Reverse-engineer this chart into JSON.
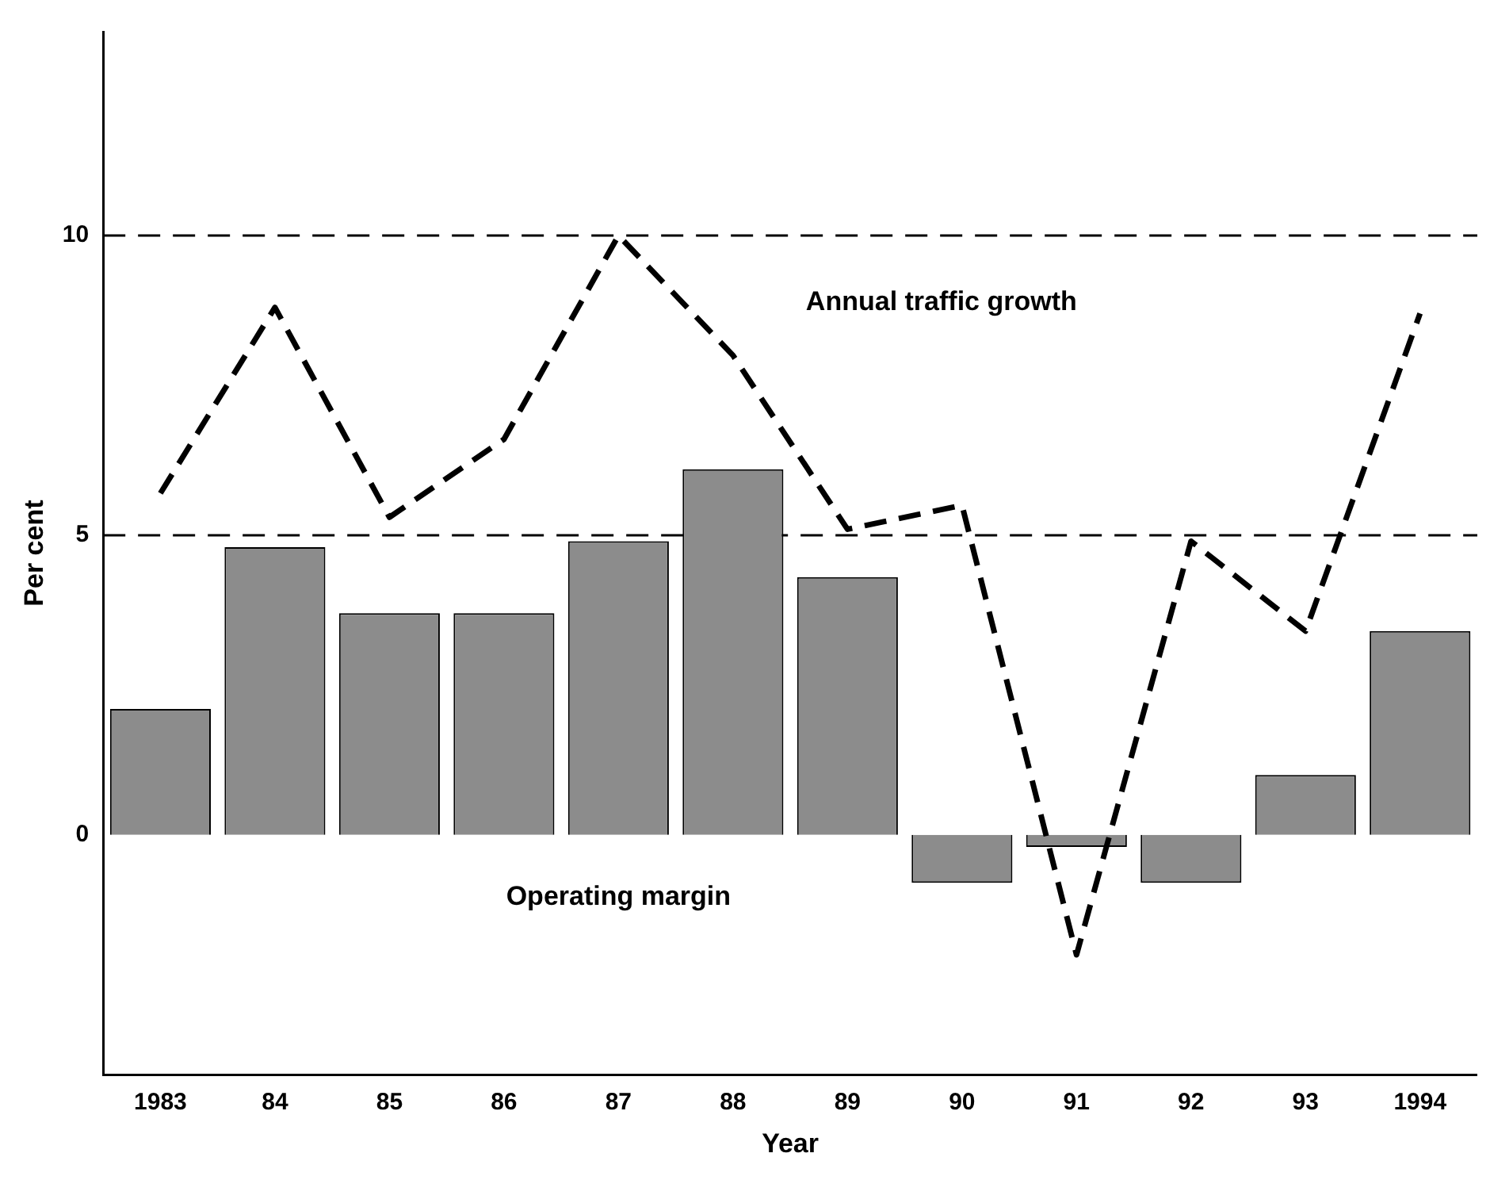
{
  "chart_data": {
    "type": "bar",
    "xlabel": "Year",
    "ylabel": "Per cent",
    "categories": [
      "1983",
      "84",
      "85",
      "86",
      "87",
      "88",
      "89",
      "90",
      "91",
      "92",
      "93",
      "1994"
    ],
    "series": [
      {
        "color": "#8c8c8c",
        "values": [
          2.1,
          4.8,
          3.7,
          3.7,
          4.9,
          6.1,
          4.3,
          -0.8,
          -0.2,
          -0.8,
          1.0,
          3.4
        ]
      },
      {
        "type": "line",
        "color": "#000000",
        "line_style": "dashed",
        "marker": "none",
        "values": [
          5.7,
          8.8,
          5.3,
          6.6,
          10.0,
          8.0,
          5.1,
          5.5,
          -2.0,
          4.9,
          3.4,
          8.7
        ]
      }
    ],
    "ylim": [
      -4,
      13.4
    ],
    "yticks": [
      0,
      5,
      10
    ],
    "grid": false,
    "legend": false,
    "ref_lines": [
      {
        "axis": "y",
        "value": 5,
        "color": "#000000",
        "line_style": "dashed"
      },
      {
        "axis": "y",
        "value": 10,
        "color": "#000000",
        "line_style": "dashed"
      }
    ],
    "annotations": [
      "Annual traffic growth",
      "Operating margin"
    ]
  }
}
